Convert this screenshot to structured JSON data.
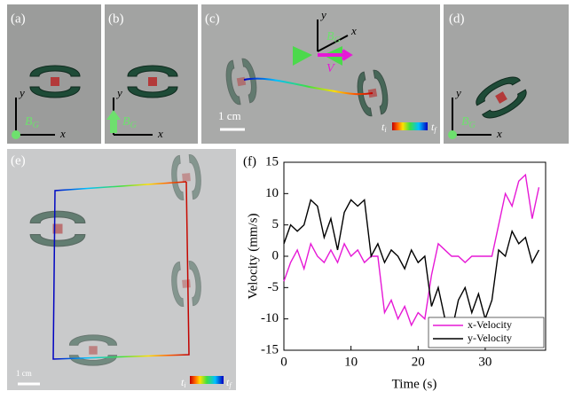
{
  "panels": {
    "a": {
      "label": "(a)",
      "x": "x",
      "y": "y",
      "field": {
        "base": "B",
        "sub": "G"
      }
    },
    "b": {
      "label": "(b)",
      "x": "x",
      "y": "y",
      "field": {
        "base": "B",
        "sub": "G"
      }
    },
    "c": {
      "label": "(c)",
      "x": "x",
      "y": "y",
      "field": {
        "base": "B",
        "sub": "G"
      },
      "velocity": "V",
      "scale": "1 cm",
      "start": {
        "base": "t",
        "sub": "i"
      },
      "end": {
        "base": "t",
        "sub": "f"
      }
    },
    "d": {
      "label": "(d)",
      "x": "x",
      "y": "y",
      "field": {
        "base": "B",
        "sub": "G"
      }
    },
    "e": {
      "label": "(e)",
      "scale": "1 cm",
      "start": {
        "base": "t",
        "sub": "i"
      },
      "end": {
        "base": "t",
        "sub": "f"
      }
    }
  },
  "chart_data": {
    "type": "line",
    "title": "(f)",
    "x_label": "Time (s)",
    "y_label": "Velocity (mm/s)",
    "x": [
      0,
      1,
      2,
      3,
      4,
      5,
      6,
      7,
      8,
      9,
      10,
      11,
      12,
      13,
      14,
      15,
      16,
      17,
      18,
      19,
      20,
      21,
      22,
      23,
      24,
      25,
      26,
      27,
      28,
      29,
      30,
      31,
      32,
      33,
      34,
      35,
      36,
      37,
      38
    ],
    "series": [
      {
        "name": "x-Velocity",
        "color": "#e619d6",
        "values": [
          -4,
          -1,
          1,
          -2,
          2,
          0,
          -1,
          1,
          -1,
          2,
          0,
          1,
          -1,
          0,
          0,
          -9,
          -7,
          -10,
          -8,
          -11,
          -9,
          -10,
          -3,
          2,
          1,
          0,
          0,
          -1,
          0,
          0,
          0,
          0,
          5,
          10,
          8,
          12,
          13,
          6,
          11
        ]
      },
      {
        "name": "y-Velocity",
        "color": "#000000",
        "values": [
          2,
          5,
          4,
          5,
          9,
          8,
          3,
          6,
          1,
          7,
          9,
          8,
          9,
          0,
          2,
          -1,
          1,
          0,
          -2,
          1,
          -1,
          0,
          -8,
          -5,
          -10,
          -12,
          -7,
          -5,
          -9,
          -6,
          -10,
          -7,
          1,
          0,
          4,
          2,
          3,
          -1,
          1
        ]
      }
    ],
    "xlim": [
      0,
      39
    ],
    "ylim": [
      -15,
      15
    ],
    "xticks": [
      0,
      10,
      20,
      30
    ],
    "yticks": [
      -15,
      -10,
      -5,
      0,
      5,
      10,
      15
    ]
  }
}
